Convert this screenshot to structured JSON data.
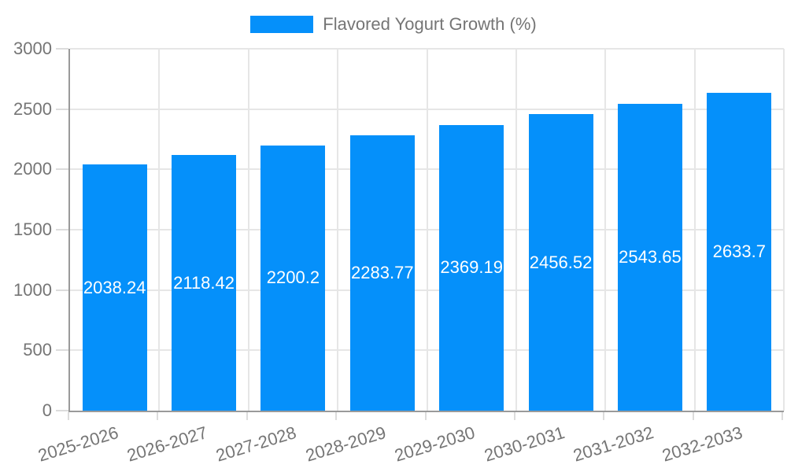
{
  "legend": {
    "label": "Flavored Yogurt Growth (%)"
  },
  "colors": {
    "bar": "#0590fa",
    "axis_line": "#9a9a9a",
    "gridline": "#e6e6e6",
    "tick_mark": "#dcdcdc",
    "axis_text": "#757575",
    "value_label_text": "#ffffff",
    "background": "#ffffff"
  },
  "chart_data": {
    "type": "bar",
    "title": "Flavored Yogurt Growth (%)",
    "categories": [
      "2025-2026",
      "2026-2027",
      "2027-2028",
      "2028-2029",
      "2029-2030",
      "2030-2031",
      "2031-2032",
      "2032-2033"
    ],
    "series": [
      {
        "name": "Flavored Yogurt Growth (%)",
        "values": [
          2038.24,
          2118.42,
          2200.2,
          2283.77,
          2369.19,
          2456.52,
          2543.65,
          2633.7
        ]
      }
    ],
    "value_labels": [
      "2038.24",
      "2118.42",
      "2200.2",
      "2283.77",
      "2369.19",
      "2456.52",
      "2543.65",
      "2633.7"
    ],
    "xlabel": "",
    "ylabel": "",
    "ylim": [
      0,
      3000
    ],
    "yticks": [
      0,
      500,
      1000,
      1500,
      2000,
      2500,
      3000
    ],
    "grid": true,
    "legend_position": "top"
  }
}
